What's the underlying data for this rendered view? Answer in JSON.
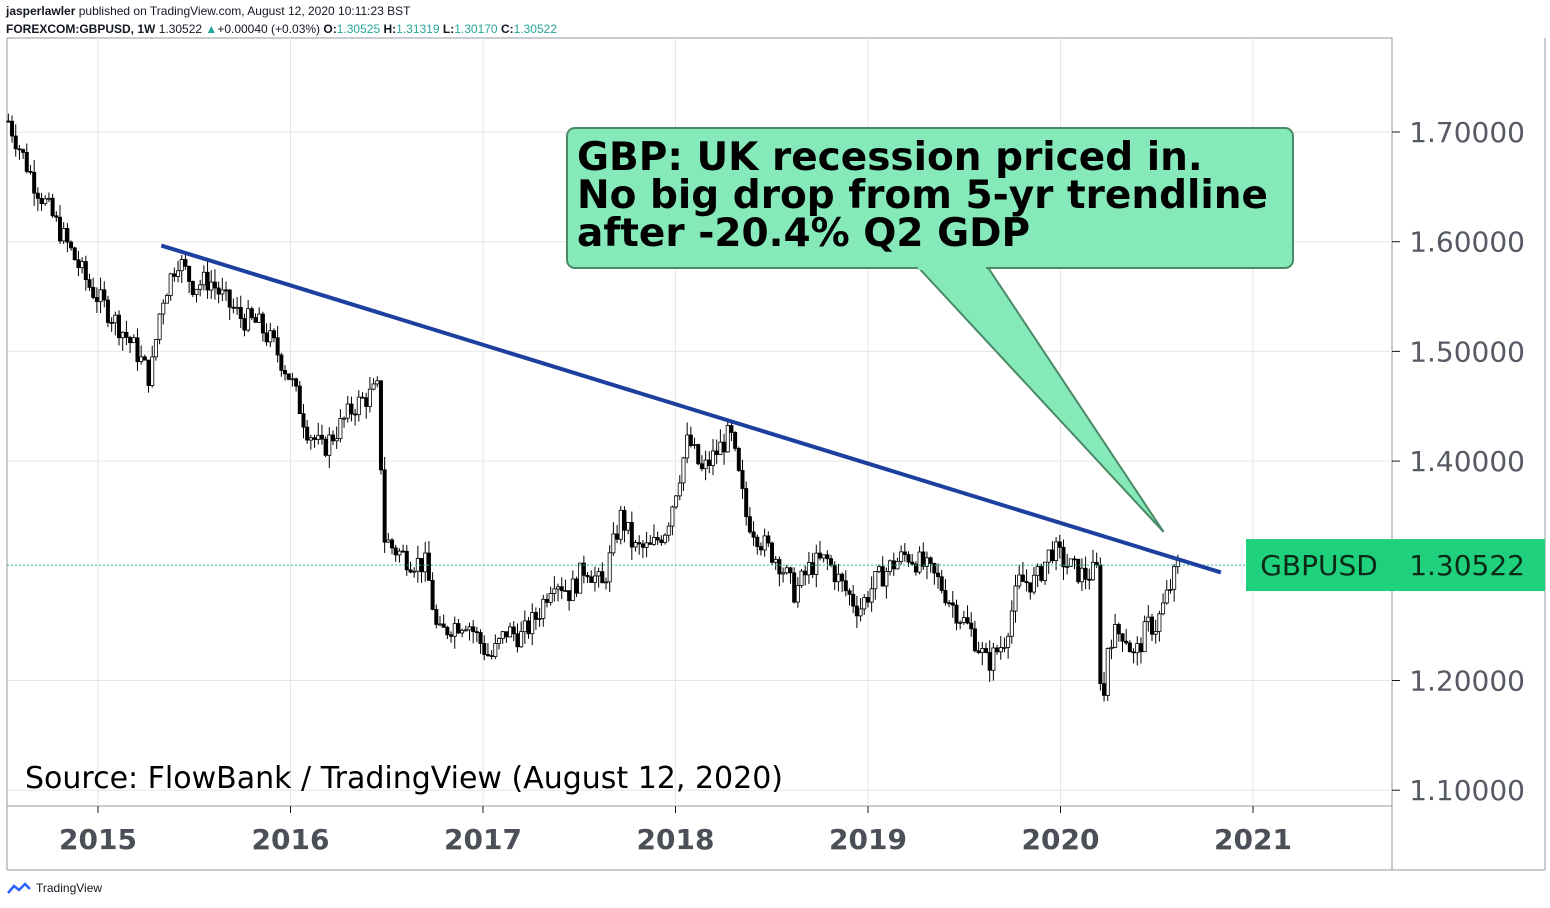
{
  "header": {
    "author": "jasperlawler",
    "published": "published on TradingView.com, August 12, 2020 10:11:23 BST",
    "symbol": "FOREXCOM:GBPUSD, 1W",
    "last": "1.30522",
    "change": "+0.00040 (+0.03%)",
    "o_label": "O:",
    "o": "1.30525",
    "h_label": "H:",
    "h": "1.31319",
    "l_label": "L:",
    "l": "1.30170",
    "c_label": "C:",
    "c": "1.30522"
  },
  "branding": {
    "label": "TradingView",
    "icon": "tradingview-logo-icon"
  },
  "colors": {
    "up": "#26a69a",
    "down": "#ef5350",
    "candle": "#000000",
    "trendline": "#1d3f9e",
    "callout_fill": "#85e9b9",
    "callout_border": "#4a8a66",
    "price_tag": "#1fd17c",
    "price_line": "#26a69a",
    "grid": "#e6e6e6"
  },
  "chart_data": {
    "type": "candlestick",
    "symbol": "GBPUSD",
    "interval": "1W",
    "x_ticks": [
      "2015",
      "2016",
      "2017",
      "2018",
      "2019",
      "2020",
      "2021"
    ],
    "y_ticks": [
      "1.70000",
      "1.60000",
      "1.50000",
      "1.40000",
      "1.20000",
      "1.10000"
    ],
    "ylim": [
      1.07,
      1.76
    ],
    "grid": true,
    "current_price": {
      "label": "GBPUSD",
      "value": "1.30522",
      "y": 1.30522
    },
    "trendline": [
      {
        "date": "2015-05-01",
        "y": 1.5965
      },
      {
        "date": "2020-11-01",
        "y": 1.2985
      }
    ],
    "annotation": {
      "lines": [
        "GBP: UK recession priced in.",
        "No big drop from 5-yr trendline",
        "after -20.4% Q2 GDP"
      ],
      "pointer": {
        "date": "2020-07-15",
        "y": 1.3354
      }
    },
    "source_note": "Source: FlowBank / TradingView (August 12, 2020)",
    "series": [
      {
        "ohlc_anchors": [
          [
            "2014-07-15",
            1.71
          ],
          [
            "2014-09-01",
            1.655
          ],
          [
            "2014-11-01",
            1.6
          ],
          [
            "2014-12-15",
            1.56
          ],
          [
            "2015-02-15",
            1.52
          ],
          [
            "2015-03-15",
            1.5
          ],
          [
            "2015-04-10",
            1.475
          ],
          [
            "2015-05-01",
            1.545
          ],
          [
            "2015-06-01",
            1.585
          ],
          [
            "2015-07-01",
            1.56
          ],
          [
            "2015-08-01",
            1.565
          ],
          [
            "2015-09-01",
            1.545
          ],
          [
            "2015-10-01",
            1.53
          ],
          [
            "2015-11-01",
            1.525
          ],
          [
            "2015-12-01",
            1.505
          ],
          [
            "2016-01-01",
            1.475
          ],
          [
            "2016-02-01",
            1.43
          ],
          [
            "2016-03-01",
            1.41
          ],
          [
            "2016-04-01",
            1.43
          ],
          [
            "2016-05-01",
            1.45
          ],
          [
            "2016-06-15",
            1.465
          ],
          [
            "2016-06-27",
            1.33
          ],
          [
            "2016-07-15",
            1.32
          ],
          [
            "2016-08-15",
            1.31
          ],
          [
            "2016-09-15",
            1.305
          ],
          [
            "2016-10-07",
            1.24
          ],
          [
            "2016-11-01",
            1.25
          ],
          [
            "2016-12-01",
            1.255
          ],
          [
            "2017-01-15",
            1.22
          ],
          [
            "2017-02-15",
            1.245
          ],
          [
            "2017-03-15",
            1.24
          ],
          [
            "2017-04-15",
            1.26
          ],
          [
            "2017-05-15",
            1.295
          ],
          [
            "2017-06-15",
            1.28
          ],
          [
            "2017-07-15",
            1.305
          ],
          [
            "2017-08-15",
            1.285
          ],
          [
            "2017-09-20",
            1.35
          ],
          [
            "2017-10-15",
            1.32
          ],
          [
            "2017-11-15",
            1.32
          ],
          [
            "2017-12-15",
            1.34
          ],
          [
            "2018-01-25",
            1.42
          ],
          [
            "2018-02-20",
            1.39
          ],
          [
            "2018-04-15",
            1.425
          ],
          [
            "2018-05-15",
            1.35
          ],
          [
            "2018-06-15",
            1.325
          ],
          [
            "2018-07-15",
            1.31
          ],
          [
            "2018-08-15",
            1.28
          ],
          [
            "2018-09-15",
            1.305
          ],
          [
            "2018-10-15",
            1.31
          ],
          [
            "2018-11-15",
            1.285
          ],
          [
            "2018-12-15",
            1.265
          ],
          [
            "2019-01-15",
            1.29
          ],
          [
            "2019-02-15",
            1.305
          ],
          [
            "2019-03-15",
            1.315
          ],
          [
            "2019-04-15",
            1.305
          ],
          [
            "2019-05-15",
            1.29
          ],
          [
            "2019-06-15",
            1.265
          ],
          [
            "2019-07-15",
            1.245
          ],
          [
            "2019-08-15",
            1.215
          ],
          [
            "2019-09-15",
            1.235
          ],
          [
            "2019-10-15",
            1.29
          ],
          [
            "2019-11-15",
            1.29
          ],
          [
            "2019-12-15",
            1.32
          ],
          [
            "2020-01-15",
            1.305
          ],
          [
            "2020-02-15",
            1.295
          ],
          [
            "2020-03-10",
            1.3
          ],
          [
            "2020-03-20",
            1.16
          ],
          [
            "2020-04-01",
            1.24
          ],
          [
            "2020-05-01",
            1.245
          ],
          [
            "2020-05-20",
            1.22
          ],
          [
            "2020-06-15",
            1.25
          ],
          [
            "2020-07-01",
            1.25
          ],
          [
            "2020-07-20",
            1.275
          ],
          [
            "2020-08-12",
            1.3052
          ]
        ]
      }
    ]
  }
}
